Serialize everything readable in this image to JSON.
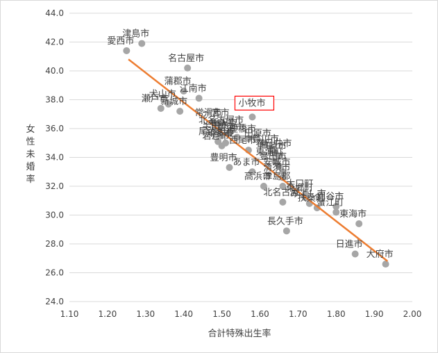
{
  "chart_data": {
    "type": "scatter",
    "xlabel": "合計特殊出生率",
    "ylabel": "女性未婚率",
    "xlim": [
      1.1,
      2.0
    ],
    "ylim": [
      24.0,
      44.0
    ],
    "x_ticks": [
      "1.10",
      "1.20",
      "1.30",
      "1.40",
      "1.50",
      "1.60",
      "1.70",
      "1.80",
      "1.90",
      "2.00"
    ],
    "y_ticks": [
      "24.0",
      "26.0",
      "28.0",
      "30.0",
      "32.0",
      "34.0",
      "36.0",
      "38.0",
      "40.0",
      "42.0",
      "44.0"
    ],
    "grid": "horizontal",
    "highlight": "小牧市",
    "trendline": {
      "color": "#ed7d31",
      "from": [
        1.255,
        40.8
      ],
      "to": [
        1.935,
        26.8
      ]
    },
    "points": [
      {
        "label": "津島市",
        "x": 1.29,
        "y": 41.9
      },
      {
        "label": "愛西市",
        "x": 1.25,
        "y": 41.4
      },
      {
        "label": "名古屋市",
        "x": 1.41,
        "y": 40.2
      },
      {
        "label": "蒲郡市",
        "x": 1.4,
        "y": 38.6
      },
      {
        "label": "江南市",
        "x": 1.44,
        "y": 38.1
      },
      {
        "label": "犬山市",
        "x": 1.36,
        "y": 37.7
      },
      {
        "label": "瀬戸市",
        "x": 1.34,
        "y": 37.4
      },
      {
        "label": "新城市",
        "x": 1.39,
        "y": 37.2
      },
      {
        "label": "小牧市",
        "x": 1.58,
        "y": 36.8
      },
      {
        "label": "常滑市",
        "x": 1.48,
        "y": 36.4
      },
      {
        "label": "一宮市",
        "x": 1.5,
        "y": 36.4
      },
      {
        "label": "北名古屋市",
        "x": 1.49,
        "y": 35.9
      },
      {
        "label": "稲沢市",
        "x": 1.52,
        "y": 35.7
      },
      {
        "label": "半田市",
        "x": 1.5,
        "y": 35.5
      },
      {
        "label": "豊橋市",
        "x": 1.57,
        "y": 35.3
      },
      {
        "label": "碧南市",
        "x": 1.54,
        "y": 35.4
      },
      {
        "label": "尾張旭市",
        "x": 1.49,
        "y": 35.1
      },
      {
        "label": "知多市",
        "x": 1.51,
        "y": 35.0
      },
      {
        "label": "日進市",
        "x": 1.85,
        "y": 27.3
      },
      {
        "label": "田原市",
        "x": 1.61,
        "y": 35.0
      },
      {
        "label": "岩倉市",
        "x": 1.5,
        "y": 34.8
      },
      {
        "label": "豊明市",
        "x": 1.52,
        "y": 33.3
      },
      {
        "label": "西尾市",
        "x": 1.57,
        "y": 34.5
      },
      {
        "label": "豊川市",
        "x": 1.63,
        "y": 34.6
      },
      {
        "label": "春日井市",
        "x": 1.64,
        "y": 34.3
      },
      {
        "label": "岡崎市",
        "x": 1.65,
        "y": 34.1
      },
      {
        "label": "東浦町",
        "x": 1.64,
        "y": 33.7
      },
      {
        "label": "豊田市",
        "x": 1.65,
        "y": 33.4
      },
      {
        "label": "あま市",
        "x": 1.58,
        "y": 33.0
      },
      {
        "label": "安城市",
        "x": 1.66,
        "y": 33.0
      },
      {
        "label": "清須市",
        "x": 1.66,
        "y": 32.6
      },
      {
        "label": "刈谷市",
        "x": 1.8,
        "y": 30.6
      },
      {
        "label": "高浜市",
        "x": 1.61,
        "y": 32.0
      },
      {
        "label": "津島郡",
        "x": 1.66,
        "y": 32.0
      },
      {
        "label": "東郷町",
        "x": 1.72,
        "y": 31.2
      },
      {
        "label": "みよし市",
        "x": 1.73,
        "y": 30.8
      },
      {
        "label": "大口町",
        "x": 1.72,
        "y": 31.5
      },
      {
        "label": "北名古屋",
        "x": 1.66,
        "y": 30.9
      },
      {
        "label": "長久手市",
        "x": 1.67,
        "y": 28.9
      },
      {
        "label": "東海市",
        "x": 1.86,
        "y": 29.4
      },
      {
        "label": "大府市",
        "x": 1.93,
        "y": 26.6
      },
      {
        "label": "扶桑町",
        "x": 1.75,
        "y": 30.5
      },
      {
        "label": "蟹江町",
        "x": 1.8,
        "y": 30.2
      }
    ]
  }
}
